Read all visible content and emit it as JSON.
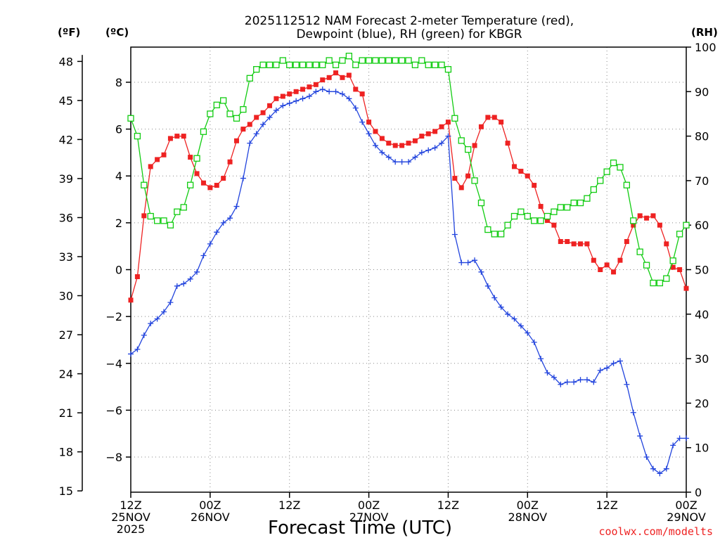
{
  "colors": {
    "temperature": "#ee2222",
    "dewpoint": "#2244dd",
    "rh": "#11cc11",
    "grid": "#888888",
    "axis": "#000000",
    "credit": "#ee2222"
  },
  "chart_data": {
    "type": "line",
    "title_line1": "2025112512 NAM Forecast 2-meter Temperature (red),",
    "title_line2": "Dewpoint (blue), RH (green) for KBGR",
    "xlabel": "Forecast Time (UTC)",
    "credit": "coolwx.com/modelts",
    "left_outer_unit": "(ºF)",
    "left_inner_unit": "(ºC)",
    "right_unit": "(RH)",
    "x_unit": "forecast hours from 2025-11-25 12Z",
    "xlim": [
      0,
      84
    ],
    "x_ticks": [
      {
        "x": 0,
        "line1": "12Z",
        "line2": "25NOV",
        "line3": "2025"
      },
      {
        "x": 12,
        "line1": "00Z",
        "line2": "26NOV",
        "line3": ""
      },
      {
        "x": 24,
        "line1": "12Z",
        "line2": "",
        "line3": ""
      },
      {
        "x": 36,
        "line1": "00Z",
        "line2": "27NOV",
        "line3": ""
      },
      {
        "x": 48,
        "line1": "12Z",
        "line2": "",
        "line3": ""
      },
      {
        "x": 60,
        "line1": "00Z",
        "line2": "28NOV",
        "line3": ""
      },
      {
        "x": 72,
        "line1": "12Z",
        "line2": "",
        "line3": ""
      },
      {
        "x": 84,
        "line1": "00Z",
        "line2": "29NOV",
        "line3": ""
      }
    ],
    "ylim_c": [
      -9.5,
      9.5
    ],
    "y_ticks_c": [
      8,
      6,
      4,
      2,
      0,
      -2,
      -4,
      -6,
      -8
    ],
    "y_tick_labels_c": [
      "8",
      "6",
      "4",
      "2",
      "0",
      "−2",
      "−4",
      "−6",
      "−8"
    ],
    "y_ticks_f": [
      48,
      45,
      42,
      39,
      36,
      33,
      30,
      27,
      24,
      21,
      18,
      15
    ],
    "ylim_rh": [
      0,
      100
    ],
    "y_ticks_rh": [
      0,
      10,
      20,
      30,
      40,
      50,
      60,
      70,
      80,
      90,
      100
    ],
    "series": [
      {
        "name": "Temperature",
        "unit": "C",
        "marker": "filled-square",
        "points": [
          [
            0,
            -1.3
          ],
          [
            1,
            -0.3
          ],
          [
            2,
            2.3
          ],
          [
            3,
            4.4
          ],
          [
            4,
            4.7
          ],
          [
            5,
            4.9
          ],
          [
            6,
            5.6
          ],
          [
            7,
            5.7
          ],
          [
            8,
            5.7
          ],
          [
            9,
            4.8
          ],
          [
            10,
            4.1
          ],
          [
            11,
            3.7
          ],
          [
            12,
            3.5
          ],
          [
            13,
            3.6
          ],
          [
            14,
            3.9
          ],
          [
            15,
            4.6
          ],
          [
            16,
            5.5
          ],
          [
            17,
            6.0
          ],
          [
            18,
            6.2
          ],
          [
            19,
            6.5
          ],
          [
            20,
            6.7
          ],
          [
            21,
            7.0
          ],
          [
            22,
            7.3
          ],
          [
            23,
            7.4
          ],
          [
            24,
            7.5
          ],
          [
            25,
            7.6
          ],
          [
            26,
            7.7
          ],
          [
            27,
            7.8
          ],
          [
            28,
            7.9
          ],
          [
            29,
            8.1
          ],
          [
            30,
            8.2
          ],
          [
            31,
            8.4
          ],
          [
            32,
            8.2
          ],
          [
            33,
            8.3
          ],
          [
            34,
            7.7
          ],
          [
            35,
            7.5
          ],
          [
            36,
            6.3
          ],
          [
            37,
            5.9
          ],
          [
            38,
            5.6
          ],
          [
            39,
            5.4
          ],
          [
            40,
            5.3
          ],
          [
            41,
            5.3
          ],
          [
            42,
            5.4
          ],
          [
            43,
            5.5
          ],
          [
            44,
            5.7
          ],
          [
            45,
            5.8
          ],
          [
            46,
            5.9
          ],
          [
            47,
            6.1
          ],
          [
            48,
            6.3
          ],
          [
            49,
            3.9
          ],
          [
            50,
            3.5
          ],
          [
            51,
            4.0
          ],
          [
            52,
            5.3
          ],
          [
            53,
            6.1
          ],
          [
            54,
            6.5
          ],
          [
            55,
            6.5
          ],
          [
            56,
            6.3
          ],
          [
            57,
            5.4
          ],
          [
            58,
            4.4
          ],
          [
            59,
            4.2
          ],
          [
            60,
            4.0
          ],
          [
            61,
            3.6
          ],
          [
            62,
            2.7
          ],
          [
            63,
            2.1
          ],
          [
            64,
            1.9
          ],
          [
            65,
            1.2
          ],
          [
            66,
            1.2
          ],
          [
            67,
            1.1
          ],
          [
            68,
            1.1
          ],
          [
            69,
            1.1
          ],
          [
            70,
            0.4
          ],
          [
            71,
            0.0
          ],
          [
            72,
            0.2
          ],
          [
            73,
            -0.1
          ],
          [
            74,
            0.4
          ],
          [
            75,
            1.2
          ],
          [
            76,
            1.9
          ],
          [
            77,
            2.3
          ],
          [
            78,
            2.2
          ],
          [
            79,
            2.3
          ],
          [
            80,
            1.9
          ],
          [
            81,
            1.1
          ],
          [
            82,
            0.1
          ],
          [
            83,
            0.0
          ],
          [
            84,
            -0.8
          ]
        ]
      },
      {
        "name": "Dewpoint",
        "unit": "C",
        "marker": "plus",
        "points": [
          [
            0,
            -3.6
          ],
          [
            1,
            -3.4
          ],
          [
            2,
            -2.8
          ],
          [
            3,
            -2.3
          ],
          [
            4,
            -2.1
          ],
          [
            5,
            -1.8
          ],
          [
            6,
            -1.4
          ],
          [
            7,
            -0.7
          ],
          [
            8,
            -0.6
          ],
          [
            9,
            -0.4
          ],
          [
            10,
            -0.1
          ],
          [
            11,
            0.6
          ],
          [
            12,
            1.1
          ],
          [
            13,
            1.6
          ],
          [
            14,
            2.0
          ],
          [
            15,
            2.2
          ],
          [
            16,
            2.7
          ],
          [
            17,
            3.9
          ],
          [
            18,
            5.4
          ],
          [
            19,
            5.8
          ],
          [
            20,
            6.2
          ],
          [
            21,
            6.5
          ],
          [
            22,
            6.8
          ],
          [
            23,
            7.0
          ],
          [
            24,
            7.1
          ],
          [
            25,
            7.2
          ],
          [
            26,
            7.3
          ],
          [
            27,
            7.4
          ],
          [
            28,
            7.6
          ],
          [
            29,
            7.7
          ],
          [
            30,
            7.6
          ],
          [
            31,
            7.6
          ],
          [
            32,
            7.5
          ],
          [
            33,
            7.3
          ],
          [
            34,
            6.9
          ],
          [
            35,
            6.3
          ],
          [
            36,
            5.8
          ],
          [
            37,
            5.3
          ],
          [
            38,
            5.0
          ],
          [
            39,
            4.8
          ],
          [
            40,
            4.6
          ],
          [
            41,
            4.6
          ],
          [
            42,
            4.6
          ],
          [
            43,
            4.8
          ],
          [
            44,
            5.0
          ],
          [
            45,
            5.1
          ],
          [
            46,
            5.2
          ],
          [
            47,
            5.4
          ],
          [
            48,
            5.7
          ],
          [
            49,
            1.5
          ],
          [
            50,
            0.3
          ],
          [
            51,
            0.3
          ],
          [
            52,
            0.4
          ],
          [
            53,
            -0.1
          ],
          [
            54,
            -0.7
          ],
          [
            55,
            -1.2
          ],
          [
            56,
            -1.6
          ],
          [
            57,
            -1.9
          ],
          [
            58,
            -2.1
          ],
          [
            59,
            -2.4
          ],
          [
            60,
            -2.7
          ],
          [
            61,
            -3.1
          ],
          [
            62,
            -3.8
          ],
          [
            63,
            -4.4
          ],
          [
            64,
            -4.6
          ],
          [
            65,
            -4.9
          ],
          [
            66,
            -4.8
          ],
          [
            67,
            -4.8
          ],
          [
            68,
            -4.7
          ],
          [
            69,
            -4.7
          ],
          [
            70,
            -4.8
          ],
          [
            71,
            -4.3
          ],
          [
            72,
            -4.2
          ],
          [
            73,
            -4.0
          ],
          [
            74,
            -3.9
          ],
          [
            75,
            -4.9
          ],
          [
            76,
            -6.1
          ],
          [
            77,
            -7.1
          ],
          [
            78,
            -8.0
          ],
          [
            79,
            -8.5
          ],
          [
            80,
            -8.7
          ],
          [
            81,
            -8.5
          ],
          [
            82,
            -7.5
          ],
          [
            83,
            -7.2
          ],
          [
            84,
            -7.2
          ]
        ]
      },
      {
        "name": "RH",
        "unit": "%",
        "marker": "open-square",
        "points": [
          [
            0,
            84
          ],
          [
            1,
            80
          ],
          [
            2,
            69
          ],
          [
            3,
            62
          ],
          [
            4,
            61
          ],
          [
            5,
            61
          ],
          [
            6,
            60
          ],
          [
            7,
            63
          ],
          [
            8,
            64
          ],
          [
            9,
            69
          ],
          [
            10,
            75
          ],
          [
            11,
            81
          ],
          [
            12,
            85
          ],
          [
            13,
            87
          ],
          [
            14,
            88
          ],
          [
            15,
            85
          ],
          [
            16,
            84
          ],
          [
            17,
            86
          ],
          [
            18,
            93
          ],
          [
            19,
            95
          ],
          [
            20,
            96
          ],
          [
            21,
            96
          ],
          [
            22,
            96
          ],
          [
            23,
            97
          ],
          [
            24,
            96
          ],
          [
            25,
            96
          ],
          [
            26,
            96
          ],
          [
            27,
            96
          ],
          [
            28,
            96
          ],
          [
            29,
            96
          ],
          [
            30,
            97
          ],
          [
            31,
            96
          ],
          [
            32,
            97
          ],
          [
            33,
            98
          ],
          [
            34,
            96
          ],
          [
            35,
            97
          ],
          [
            36,
            97
          ],
          [
            37,
            97
          ],
          [
            38,
            97
          ],
          [
            39,
            97
          ],
          [
            40,
            97
          ],
          [
            41,
            97
          ],
          [
            42,
            97
          ],
          [
            43,
            96
          ],
          [
            44,
            97
          ],
          [
            45,
            96
          ],
          [
            46,
            96
          ],
          [
            47,
            96
          ],
          [
            48,
            95
          ],
          [
            49,
            84
          ],
          [
            50,
            79
          ],
          [
            51,
            77
          ],
          [
            52,
            70
          ],
          [
            53,
            65
          ],
          [
            54,
            59
          ],
          [
            55,
            58
          ],
          [
            56,
            58
          ],
          [
            57,
            60
          ],
          [
            58,
            62
          ],
          [
            59,
            63
          ],
          [
            60,
            62
          ],
          [
            61,
            61
          ],
          [
            62,
            61
          ],
          [
            63,
            62
          ],
          [
            64,
            63
          ],
          [
            65,
            64
          ],
          [
            66,
            64
          ],
          [
            67,
            65
          ],
          [
            68,
            65
          ],
          [
            69,
            66
          ],
          [
            70,
            68
          ],
          [
            71,
            70
          ],
          [
            72,
            72
          ],
          [
            73,
            74
          ],
          [
            74,
            73
          ],
          [
            75,
            69
          ],
          [
            76,
            61
          ],
          [
            77,
            54
          ],
          [
            78,
            51
          ],
          [
            79,
            47
          ],
          [
            80,
            47
          ],
          [
            81,
            48
          ],
          [
            82,
            52
          ],
          [
            83,
            58
          ],
          [
            84,
            60
          ]
        ]
      }
    ]
  }
}
